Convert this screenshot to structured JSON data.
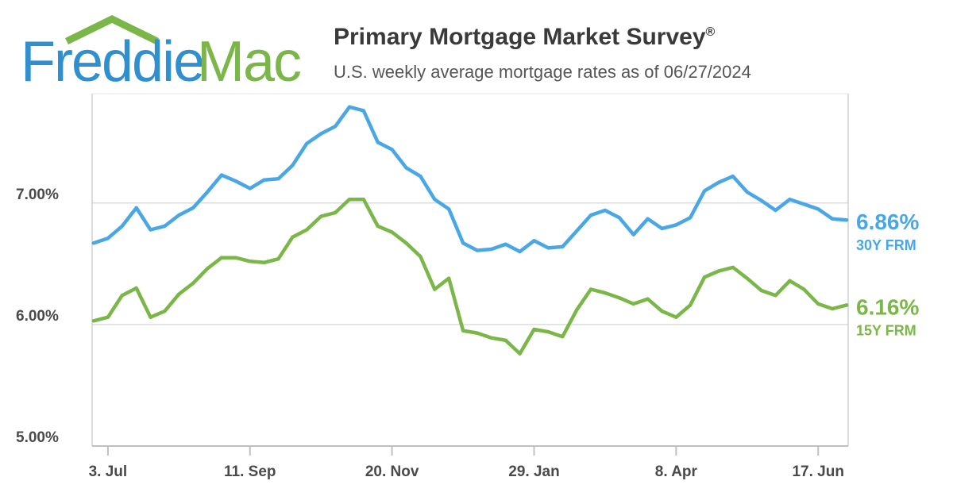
{
  "logo": {
    "part1": "Freddie",
    "part2": "Mac",
    "roof_color": "#7ab648"
  },
  "header": {
    "title": "Primary Mortgage Market Survey",
    "title_mark": "®",
    "subtitle": "U.S. weekly average mortgage rates as of 06/27/2024"
  },
  "chart_data": {
    "type": "line",
    "title": "Primary Mortgage Market Survey®",
    "subtitle": "U.S. weekly average mortgage rates as of 06/27/2024",
    "xlabel": "",
    "ylabel": "",
    "ylim": [
      5.0,
      7.9
    ],
    "grid": "horizontal",
    "y_ticks": [
      {
        "value": 5.0,
        "label": "5.00%"
      },
      {
        "value": 6.0,
        "label": "6.00%"
      },
      {
        "value": 7.0,
        "label": "7.00%"
      }
    ],
    "x_ticks": [
      {
        "week": 1,
        "label": "3. Jul"
      },
      {
        "week": 11,
        "label": "11. Sep"
      },
      {
        "week": 21,
        "label": "20. Nov"
      },
      {
        "week": 31,
        "label": "29. Jan"
      },
      {
        "week": 41,
        "label": "8. Apr"
      },
      {
        "week": 51,
        "label": "17. Jun"
      }
    ],
    "series": [
      {
        "name": "30Y FRM",
        "color": "#4aa7e6",
        "end_label": "6.86%",
        "values": [
          6.67,
          6.71,
          6.81,
          6.96,
          6.78,
          6.81,
          6.9,
          6.96,
          7.09,
          7.23,
          7.18,
          7.12,
          7.19,
          7.2,
          7.31,
          7.49,
          7.57,
          7.63,
          7.79,
          7.76,
          7.5,
          7.44,
          7.29,
          7.22,
          7.03,
          6.95,
          6.67,
          6.61,
          6.62,
          6.66,
          6.6,
          6.69,
          6.63,
          6.64,
          6.77,
          6.9,
          6.94,
          6.88,
          6.74,
          6.87,
          6.79,
          6.82,
          6.88,
          7.1,
          7.17,
          7.22,
          7.09,
          7.02,
          6.94,
          7.03,
          6.99,
          6.95,
          6.87,
          6.86
        ]
      },
      {
        "name": "15Y FRM",
        "color": "#7ab648",
        "end_label": "6.16%",
        "values": [
          6.03,
          6.06,
          6.24,
          6.3,
          6.06,
          6.11,
          6.25,
          6.34,
          6.46,
          6.55,
          6.55,
          6.52,
          6.51,
          6.54,
          6.72,
          6.78,
          6.89,
          6.92,
          7.03,
          7.03,
          6.81,
          6.76,
          6.67,
          6.56,
          6.29,
          6.38,
          5.95,
          5.93,
          5.89,
          5.87,
          5.76,
          5.96,
          5.94,
          5.9,
          6.12,
          6.29,
          6.26,
          6.22,
          6.17,
          6.21,
          6.11,
          6.06,
          6.16,
          6.39,
          6.44,
          6.47,
          6.38,
          6.28,
          6.24,
          6.36,
          6.29,
          6.17,
          6.13,
          6.16
        ]
      }
    ]
  }
}
